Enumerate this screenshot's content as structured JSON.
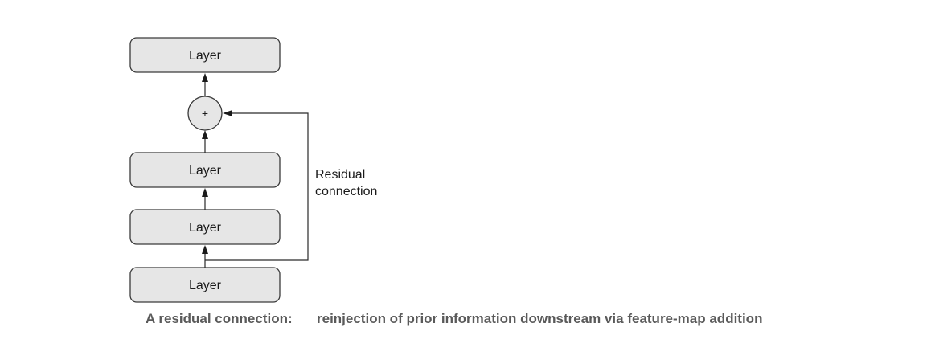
{
  "nodes": {
    "top_layer": "Layer",
    "middle_upper_layer": "Layer",
    "middle_lower_layer": "Layer",
    "bottom_layer": "Layer"
  },
  "add_node": {
    "symbol": "+"
  },
  "residual": {
    "line1": "Residual",
    "line2": "connection"
  },
  "caption": {
    "label": "A residual connection:",
    "text": "reinjection of prior information downstream via feature-map addition"
  }
}
